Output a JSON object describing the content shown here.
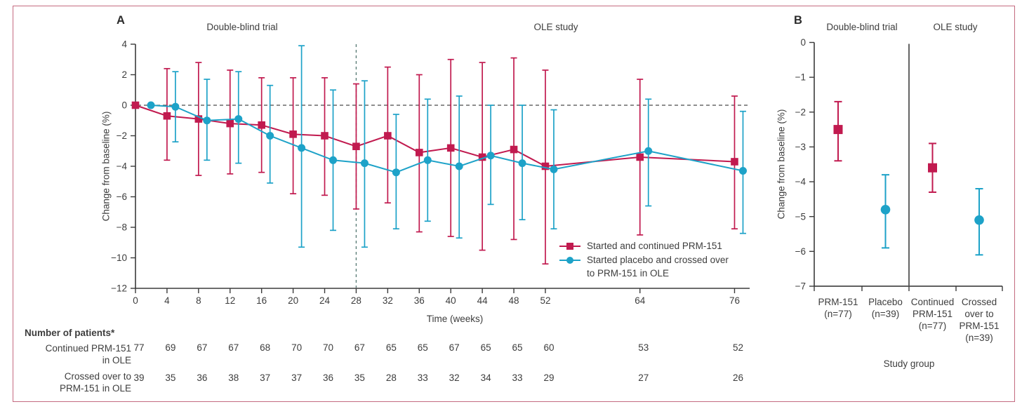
{
  "figure": {
    "border_color": "#c46a80",
    "colors": {
      "red": "#c11a4f",
      "teal": "#1da2c8",
      "axis": "#3b3b3b",
      "zero_line": "#4a4a4a",
      "week28_divider": "#5e7f79",
      "panelB_divider": "#222222"
    }
  },
  "panelA": {
    "label": "A",
    "phase_labels": [
      "Double-blind trial",
      "OLE study"
    ],
    "ylabel": "Change from baseline (%)",
    "xlabel": "Time (weeks)",
    "legend": [
      {
        "lines": [
          "Started and continued PRM-151"
        ]
      },
      {
        "lines": [
          "Started placebo and crossed over",
          "to PRM-151 in OLE"
        ]
      }
    ]
  },
  "panelB": {
    "label": "B",
    "phase_labels": [
      "Double-blind trial",
      "OLE study"
    ],
    "ylabel": "Change from baseline (%)",
    "xlabel": "Study group"
  },
  "patients_table": {
    "header": "Number of patients*",
    "rows": [
      {
        "label_lines": [
          "Continued PRM-151",
          "in OLE"
        ],
        "values": [
          77,
          69,
          67,
          67,
          68,
          70,
          70,
          67,
          65,
          65,
          67,
          65,
          65,
          60,
          53,
          52
        ]
      },
      {
        "label_lines": [
          "Crossed over to",
          "PRM-151 in OLE"
        ],
        "values": [
          39,
          35,
          36,
          38,
          37,
          37,
          36,
          35,
          28,
          33,
          32,
          34,
          33,
          29,
          27,
          26
        ]
      }
    ]
  },
  "chart_data": [
    {
      "panel": "A",
      "type": "line",
      "title": "",
      "xlabel": "Time (weeks)",
      "ylabel": "Change from baseline (%)",
      "ylim": [
        -12,
        4
      ],
      "yticks": [
        4,
        2,
        0,
        -2,
        -4,
        -6,
        -8,
        -10,
        -12
      ],
      "x": [
        0,
        4,
        8,
        12,
        16,
        20,
        24,
        28,
        32,
        36,
        40,
        44,
        48,
        52,
        64,
        76
      ],
      "xticks": [
        0,
        4,
        8,
        12,
        16,
        20,
        24,
        28,
        32,
        36,
        40,
        44,
        48,
        52,
        64,
        76
      ],
      "grid": false,
      "legend_position": "lower-right-inside",
      "annotations": {
        "hline_y": 0,
        "vline_week": 28
      },
      "series": [
        {
          "name": "Started and continued PRM-151",
          "color": "#c11a4f",
          "marker": "square",
          "values": [
            0,
            -0.7,
            -0.9,
            -1.2,
            -1.3,
            -1.9,
            -2.0,
            -2.7,
            -2.0,
            -3.1,
            -2.8,
            -3.4,
            -2.9,
            -4.0,
            -3.4,
            -3.7
          ],
          "ci_low": [
            null,
            -3.6,
            -4.6,
            -4.5,
            -4.4,
            -5.8,
            -5.9,
            -6.8,
            -6.4,
            -8.3,
            -8.6,
            -9.5,
            -8.8,
            -10.4,
            -8.5,
            -8.1
          ],
          "ci_high": [
            null,
            2.4,
            2.8,
            2.3,
            1.8,
            1.8,
            1.8,
            1.4,
            2.5,
            2.0,
            3.0,
            2.8,
            3.1,
            2.3,
            1.7,
            0.6
          ]
        },
        {
          "name": "Started placebo and crossed over to PRM-151 in OLE",
          "color": "#1da2c8",
          "marker": "circle",
          "values": [
            0,
            -0.1,
            -1.0,
            -0.9,
            -2.0,
            -2.8,
            -3.6,
            -3.8,
            -4.4,
            -3.6,
            -4.0,
            -3.3,
            -3.8,
            -4.2,
            -3.0,
            -4.3
          ],
          "ci_low": [
            null,
            -2.4,
            -3.6,
            -3.8,
            -5.1,
            -9.3,
            -8.2,
            -9.3,
            -8.1,
            -7.6,
            -8.7,
            -6.5,
            -7.5,
            -8.1,
            -6.6,
            -8.4
          ],
          "ci_high": [
            null,
            2.2,
            1.7,
            2.2,
            1.3,
            3.9,
            1.0,
            1.6,
            -0.6,
            0.4,
            0.6,
            0.0,
            0.0,
            -0.3,
            0.4,
            -0.4
          ]
        }
      ]
    },
    {
      "panel": "B",
      "type": "scatter",
      "title": "",
      "xlabel": "Study group",
      "ylabel": "Change from baseline (%)",
      "ylim": [
        -7,
        0
      ],
      "yticks": [
        0,
        -1,
        -2,
        -3,
        -4,
        -5,
        -6,
        -7
      ],
      "phase_labels": [
        "Double-blind trial",
        "OLE study"
      ],
      "divider_after_category": 2,
      "categories": [
        {
          "label_lines": [
            "PRM-151",
            "(n=77)"
          ]
        },
        {
          "label_lines": [
            "Placebo",
            "(n=39)"
          ]
        },
        {
          "label_lines": [
            "Continued",
            "PRM-151",
            "(n=77)"
          ]
        },
        {
          "label_lines": [
            "Crossed",
            "over to",
            "PRM-151",
            "(n=39)"
          ]
        }
      ],
      "points": [
        {
          "label": "PRM-151 (n=77)",
          "value": -2.5,
          "ci": [
            -3.4,
            -1.7
          ],
          "color": "#c11a4f",
          "marker": "square"
        },
        {
          "label": "Placebo (n=39)",
          "value": -4.8,
          "ci": [
            -5.9,
            -3.8
          ],
          "color": "#1da2c8",
          "marker": "circle"
        },
        {
          "label": "Continued PRM-151 (n=77)",
          "value": -3.6,
          "ci": [
            -4.3,
            -2.9
          ],
          "color": "#c11a4f",
          "marker": "square"
        },
        {
          "label": "Crossed over to PRM-151 (n=39)",
          "value": -5.1,
          "ci": [
            -6.1,
            -4.2
          ],
          "color": "#1da2c8",
          "marker": "circle"
        }
      ]
    }
  ]
}
